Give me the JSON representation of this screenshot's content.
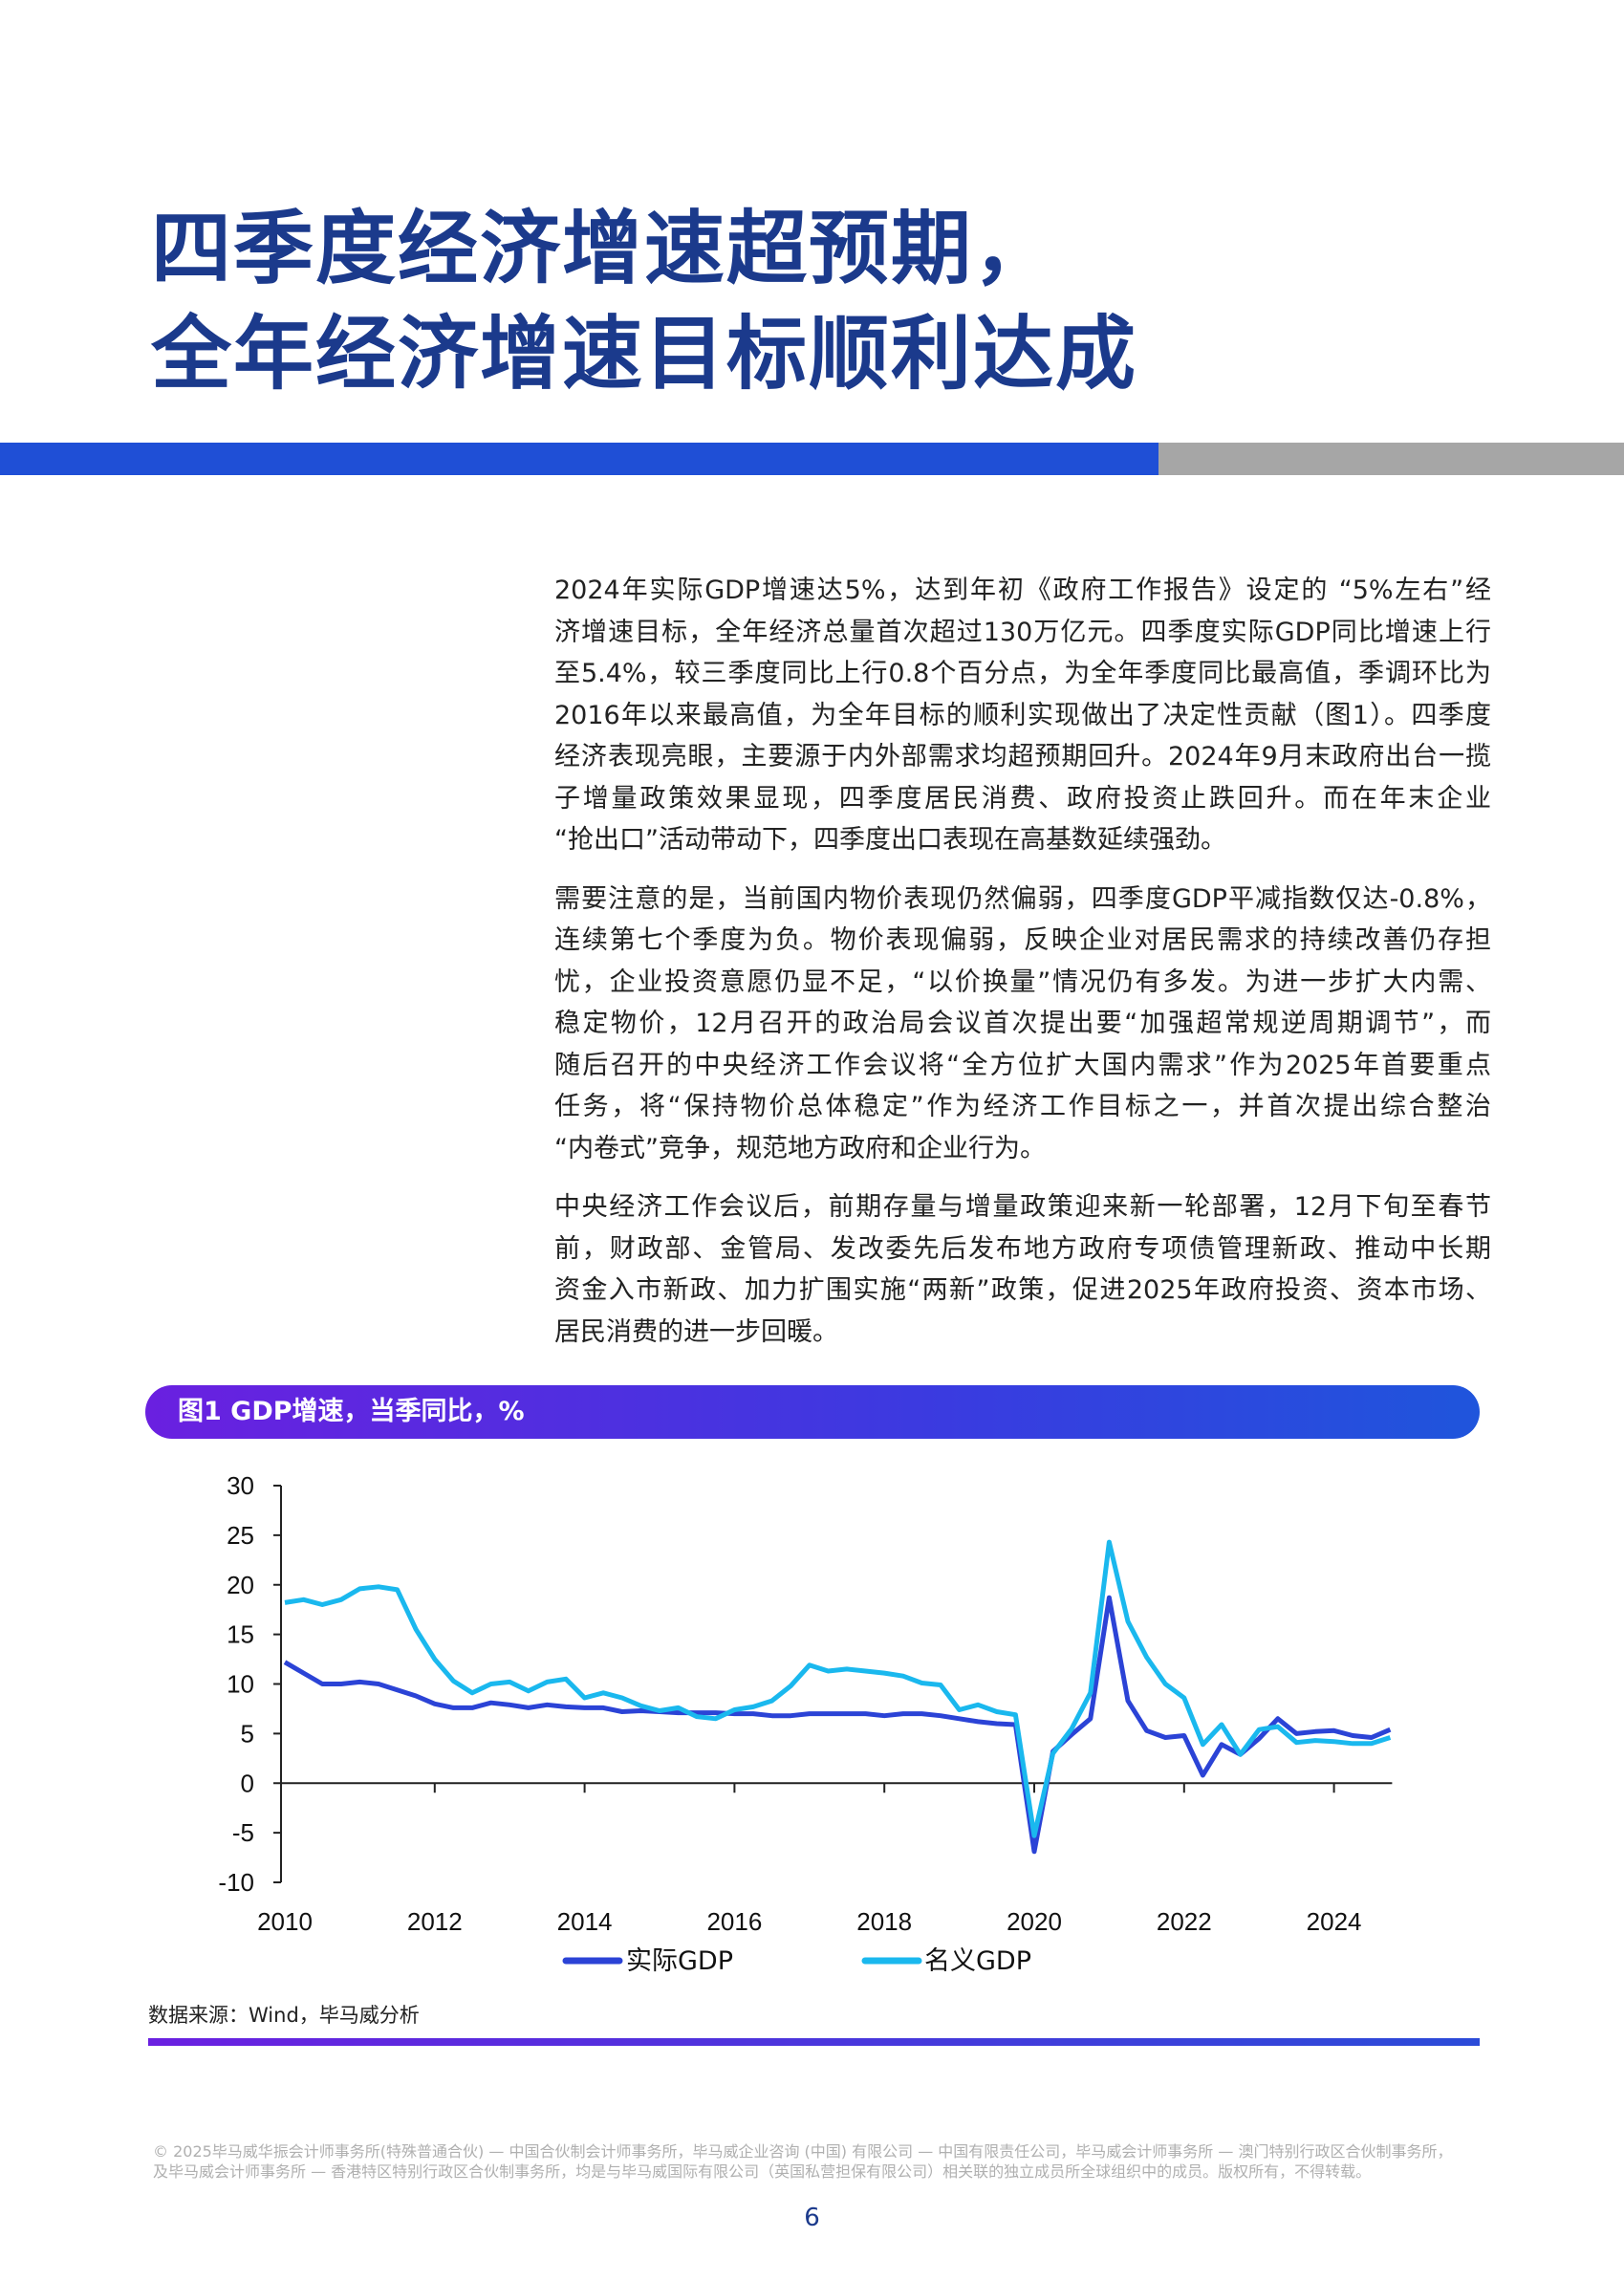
{
  "title": {
    "line1": "四季度经济增速超预期，",
    "line2": "全年经济增速目标顺利达成"
  },
  "body": {
    "paragraphs": [
      [
        "2024年实际GDP增速达5%，达到年初《政府工作报告》设定的 “5%左右”经",
        "济增速目标，全年经济总量首次超过130万亿元。四季度实际GDP同比增速上行",
        "至5.4%，较三季度同比上行0.8个百分点，为全年季度同比最高值，季调环比为",
        "2016年以来最高值，为全年目标的顺利实现做出了决定性贡献（图1）。四季度",
        "经济表现亮眼，主要源于内外部需求均超预期回升。2024年9月末政府出台一揽",
        "子增量政策效果显现，四季度居民消费、政府投资止跌回升。而在年末企业",
        "“抢出口”活动带动下，四季度出口表现在高基数延续强劲。"
      ],
      [
        "需要注意的是，当前国内物价表现仍然偏弱，四季度GDP平减指数仅达-0.8%，",
        "连续第七个季度为负。物价表现偏弱，反映企业对居民需求的持续改善仍存担",
        "忧，企业投资意愿仍显不足，“以价换量”情况仍有多发。为进一步扩大内需、",
        "稳定物价，12月召开的政治局会议首次提出要“加强超常规逆周期调节”，而",
        "随后召开的中央经济工作会议将“全方位扩大国内需求”作为2025年首要重点",
        "任务，将“保持物价总体稳定”作为经济工作目标之一，并首次提出综合整治",
        "“内卷式”竞争，规范地方政府和企业行为。"
      ],
      [
        "中央经济工作会议后，前期存量与增量政策迎来新一轮部署，12月下旬至春节",
        "前，财政部、金管局、发改委先后发布地方政府专项债管理新政、推动中长期",
        "资金入市新政、加力扩围实施“两新”政策，促进2025年政府投资、资本市场、",
        "居民消费的进一步回暖。"
      ]
    ]
  },
  "figure": {
    "header": "图1 GDP增速，当季同比，%",
    "source": "数据来源：Wind，毕马威分析"
  },
  "chart_data": {
    "type": "line",
    "title": "图1 GDP增速，当季同比，%",
    "x_frequency": "quarterly",
    "x": [
      "2010Q1",
      "2010Q2",
      "2010Q3",
      "2010Q4",
      "2011Q1",
      "2011Q2",
      "2011Q3",
      "2011Q4",
      "2012Q1",
      "2012Q2",
      "2012Q3",
      "2012Q4",
      "2013Q1",
      "2013Q2",
      "2013Q3",
      "2013Q4",
      "2014Q1",
      "2014Q2",
      "2014Q3",
      "2014Q4",
      "2015Q1",
      "2015Q2",
      "2015Q3",
      "2015Q4",
      "2016Q1",
      "2016Q2",
      "2016Q3",
      "2016Q4",
      "2017Q1",
      "2017Q2",
      "2017Q3",
      "2017Q4",
      "2018Q1",
      "2018Q2",
      "2018Q3",
      "2018Q4",
      "2019Q1",
      "2019Q2",
      "2019Q3",
      "2019Q4",
      "2020Q1",
      "2020Q2",
      "2020Q3",
      "2020Q4",
      "2021Q1",
      "2021Q2",
      "2021Q3",
      "2021Q4",
      "2022Q1",
      "2022Q2",
      "2022Q3",
      "2022Q4",
      "2023Q1",
      "2023Q2",
      "2023Q3",
      "2023Q4",
      "2024Q1",
      "2024Q2",
      "2024Q3",
      "2024Q4"
    ],
    "xticks": [
      "2010",
      "2012",
      "2014",
      "2016",
      "2018",
      "2020",
      "2022",
      "2024"
    ],
    "yticks": [
      30,
      25,
      20,
      15,
      10,
      5,
      0,
      -5,
      -10
    ],
    "ylim": [
      -10,
      30
    ],
    "grid": false,
    "legend_position": "bottom",
    "series": [
      {
        "name": "实际GDP",
        "color": "#2b43d6",
        "values": [
          12.2,
          11.1,
          10.0,
          10.0,
          10.2,
          10.0,
          9.4,
          8.8,
          8.0,
          7.6,
          7.6,
          8.1,
          7.9,
          7.6,
          7.9,
          7.7,
          7.6,
          7.6,
          7.2,
          7.3,
          7.2,
          7.1,
          7.1,
          7.1,
          7.0,
          7.0,
          6.8,
          6.8,
          7.0,
          7.0,
          7.0,
          7.0,
          6.8,
          7.0,
          7.0,
          6.8,
          6.5,
          6.2,
          6.0,
          5.9,
          -6.9,
          3.2,
          4.9,
          6.5,
          18.7,
          8.3,
          5.3,
          4.6,
          4.8,
          0.8,
          3.9,
          2.9,
          4.5,
          6.5,
          5.0,
          5.2,
          5.3,
          4.8,
          4.6,
          5.4
        ]
      },
      {
        "name": "名义GDP",
        "color": "#1ab8ee",
        "values": [
          18.2,
          18.5,
          18.0,
          18.5,
          19.6,
          19.8,
          19.5,
          15.5,
          12.5,
          10.3,
          9.1,
          10.0,
          10.2,
          9.3,
          10.2,
          10.5,
          8.6,
          9.1,
          8.6,
          7.8,
          7.3,
          7.6,
          6.7,
          6.5,
          7.4,
          7.7,
          8.3,
          9.8,
          11.9,
          11.3,
          11.5,
          11.3,
          11.1,
          10.8,
          10.1,
          9.9,
          7.4,
          7.9,
          7.2,
          6.9,
          -5.3,
          3.0,
          5.5,
          9.1,
          24.3,
          16.3,
          12.7,
          10.0,
          8.6,
          3.9,
          5.9,
          2.9,
          5.4,
          5.7,
          4.1,
          4.3,
          4.2,
          4.0,
          4.0,
          4.6
        ]
      }
    ]
  },
  "footer": {
    "line1": "© 2025毕马威华振会计师事务所(特殊普通合伙) — 中国合伙制会计师事务所，毕马威企业咨询 (中国) 有限公司 — 中国有限责任公司，毕马威会计师事务所 — 澳门特别行政区合伙制事务所，",
    "line2": "及毕马威会计师事务所 — 香港特区特别行政区合伙制事务所，均是与毕马威国际有限公司（英国私营担保有限公司）相关联的独立成员所全球组织中的成员。版权所有，不得转载。",
    "page_number": "6"
  }
}
